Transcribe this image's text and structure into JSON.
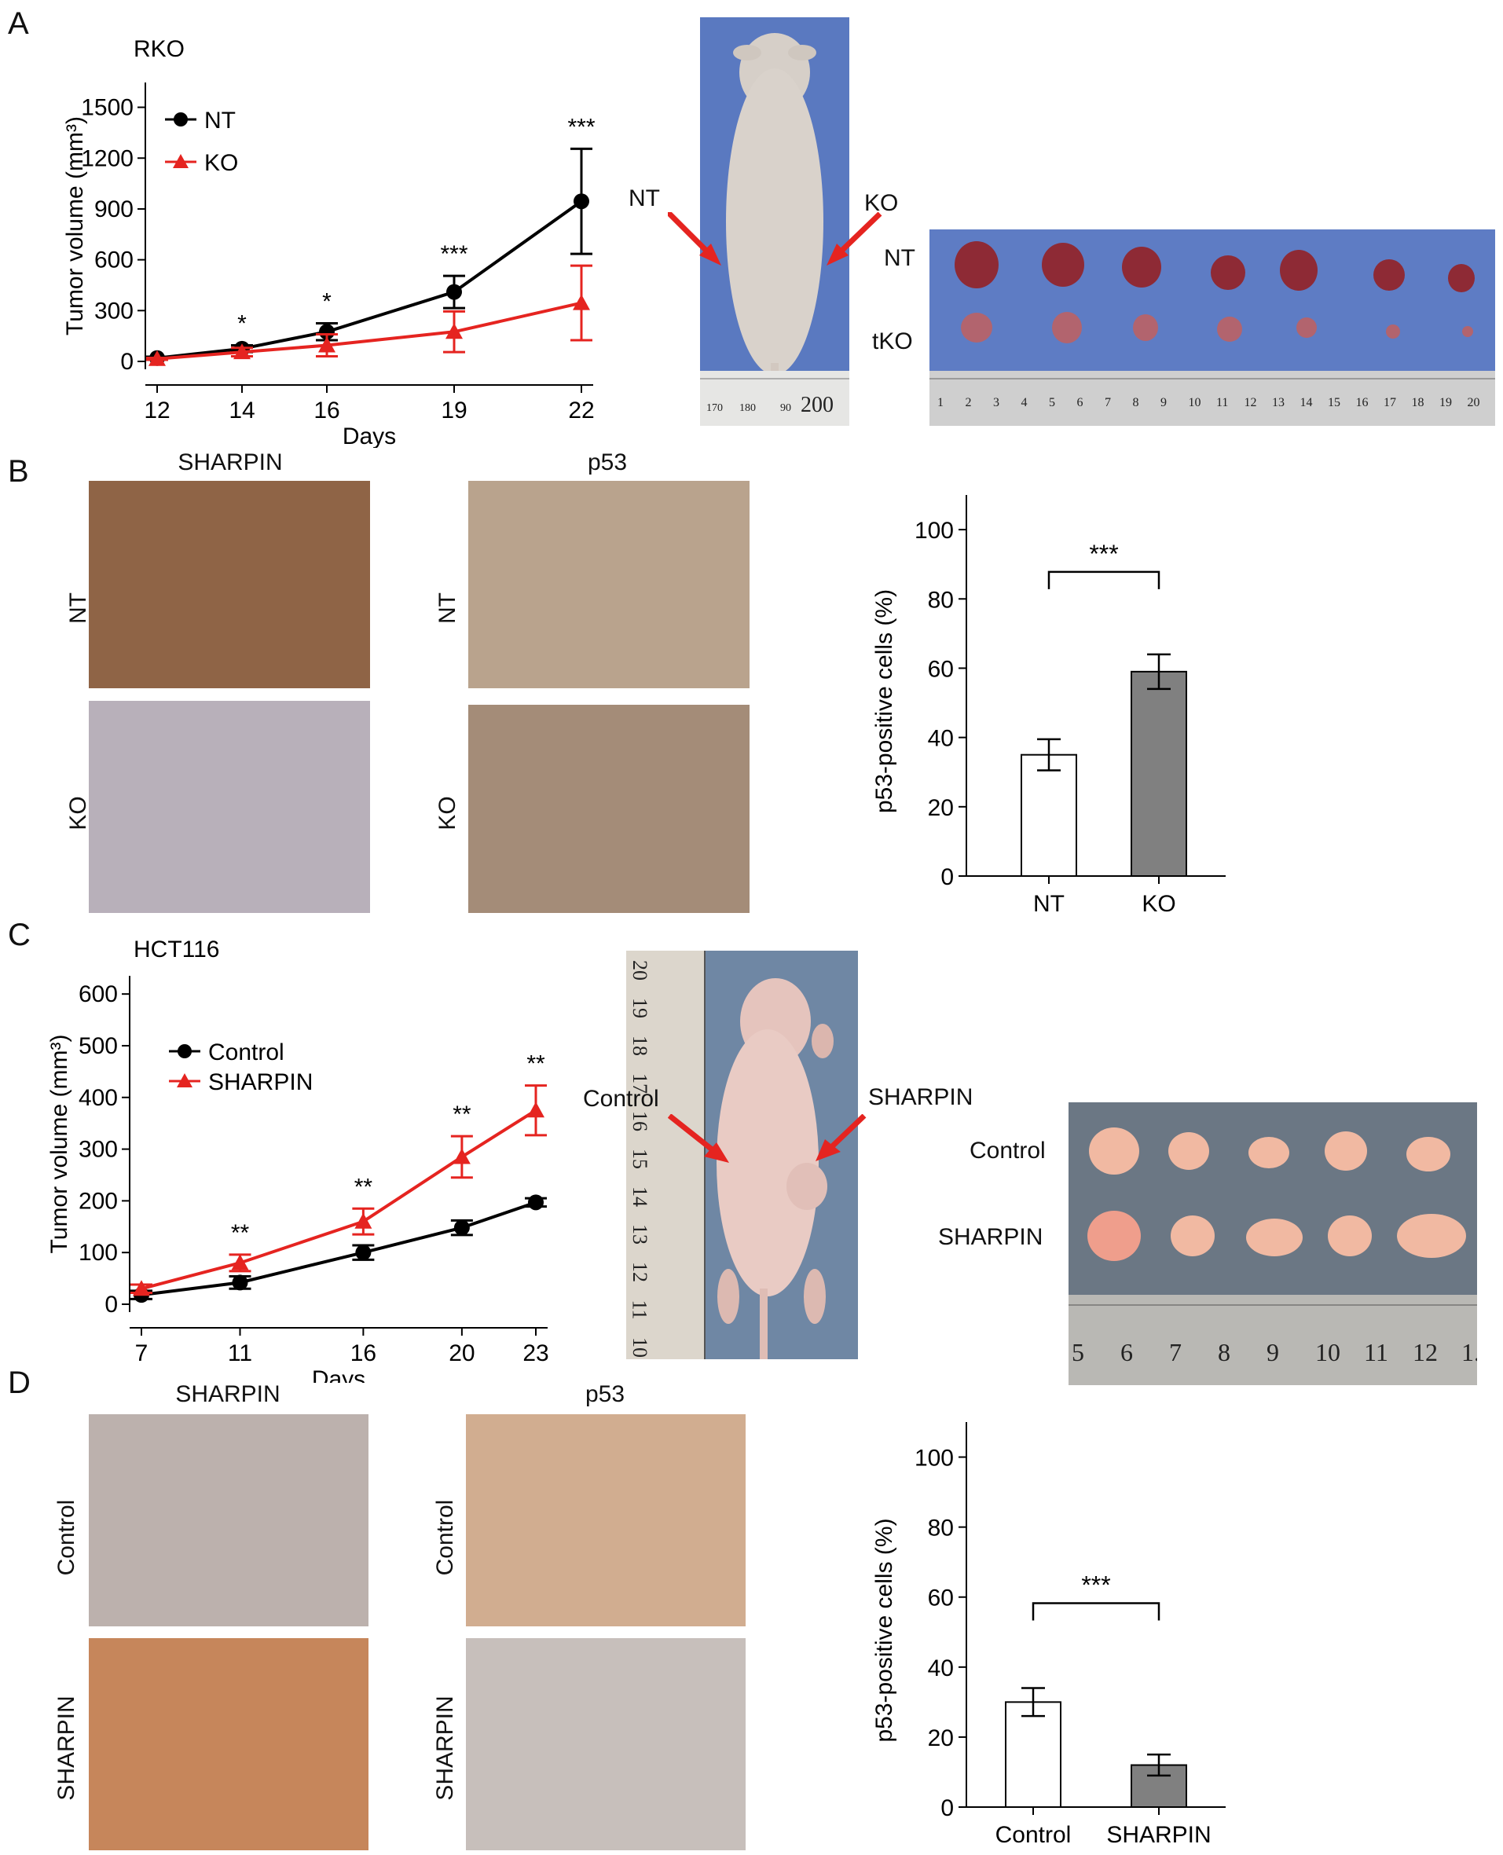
{
  "panels": [
    "A",
    "B",
    "C",
    "D"
  ],
  "panelA": {
    "photo_labels": {
      "left_arrow": "NT",
      "right_arrow": "KO",
      "row1": "NT",
      "row2": "tKO"
    },
    "ruler_mouse": [
      "170",
      "180",
      "90",
      "200"
    ],
    "ruler_tumors": [
      "1",
      "2",
      "3",
      "4",
      "5",
      "6",
      "7",
      "8",
      "9",
      "10",
      "11",
      "12",
      "13",
      "14",
      "15",
      "16",
      "17",
      "18",
      "19",
      "20"
    ]
  },
  "panelB": {
    "col_titles": [
      "SHARPIN",
      "p53"
    ],
    "row_labels": [
      "NT",
      "KO"
    ]
  },
  "panelC": {
    "photo_labels": {
      "left_arrow": "Control",
      "right_arrow": "SHARPIN",
      "row1": "Control",
      "row2": "SHARPIN"
    },
    "ruler_mouse": [
      "20",
      "19",
      "18",
      "17",
      "16",
      "15",
      "14",
      "13",
      "12",
      "11",
      "10"
    ],
    "ruler_tumors": [
      "5",
      "6",
      "7",
      "8",
      "9",
      "10",
      "11",
      "12",
      "1."
    ]
  },
  "panelD": {
    "col_titles": [
      "SHARPIN",
      "p53"
    ],
    "row_labels": [
      "Control",
      "SHARPIN"
    ]
  },
  "chart_data": [
    {
      "id": "A-line",
      "type": "line",
      "panel": "A",
      "title": "RKO",
      "xlabel": "Days",
      "ylabel": "Tumor volume (mm³)",
      "x": [
        12,
        14,
        16,
        19,
        22
      ],
      "xticks": [
        "12",
        "14",
        "16",
        "19",
        "22"
      ],
      "yticks": [
        0,
        300,
        600,
        900,
        1200,
        1500
      ],
      "ylim": [
        0,
        1600
      ],
      "series": [
        {
          "name": "NT",
          "color": "#000000",
          "marker": "circle",
          "values": [
            20,
            75,
            175,
            410,
            945
          ],
          "errors": [
            8,
            20,
            50,
            95,
            310
          ]
        },
        {
          "name": "KO",
          "color": "#e52420",
          "marker": "triangle",
          "values": [
            15,
            55,
            95,
            175,
            345
          ],
          "errors": [
            6,
            25,
            65,
            120,
            220
          ]
        }
      ],
      "significance": [
        "",
        "*",
        "*",
        "***",
        "***"
      ],
      "legend": "top-left"
    },
    {
      "id": "B-bar",
      "type": "bar",
      "panel": "B",
      "categories": [
        "NT",
        "KO"
      ],
      "values": [
        35,
        59
      ],
      "errors": [
        4.5,
        5
      ],
      "fills": [
        "#ffffff",
        "#808080"
      ],
      "ylabel": "p53-positive cells (%)",
      "yticks": [
        0,
        20,
        40,
        60,
        80,
        100
      ],
      "ylim": [
        0,
        110
      ],
      "significance": "***"
    },
    {
      "id": "C-line",
      "type": "line",
      "panel": "C",
      "title": "HCT116",
      "xlabel": "Days",
      "ylabel": "Tumor volume (mm³)",
      "x": [
        7,
        11,
        16,
        20,
        23
      ],
      "xticks": [
        "7",
        "11",
        "16",
        "20",
        "23"
      ],
      "yticks": [
        0,
        100,
        200,
        300,
        400,
        500,
        600
      ],
      "ylim": [
        0,
        620
      ],
      "series": [
        {
          "name": "Control",
          "color": "#000000",
          "marker": "circle",
          "values": [
            18,
            42,
            100,
            148,
            197
          ],
          "errors": [
            8,
            12,
            14,
            14,
            8
          ]
        },
        {
          "name": "SHARPIN",
          "color": "#e52420",
          "marker": "triangle",
          "values": [
            30,
            80,
            160,
            285,
            375
          ],
          "errors": [
            8,
            16,
            25,
            40,
            48
          ]
        }
      ],
      "significance": [
        "",
        "**",
        "**",
        "**",
        "**"
      ],
      "legend": "top-left"
    },
    {
      "id": "D-bar",
      "type": "bar",
      "panel": "D",
      "categories": [
        "Control",
        "SHARPIN"
      ],
      "values": [
        30,
        12
      ],
      "errors": [
        4,
        3
      ],
      "fills": [
        "#ffffff",
        "#808080"
      ],
      "ylabel": "p53-positive cells (%)",
      "yticks": [
        0,
        20,
        40,
        60,
        80,
        100
      ],
      "ylim": [
        0,
        110
      ],
      "significance": "***"
    }
  ]
}
